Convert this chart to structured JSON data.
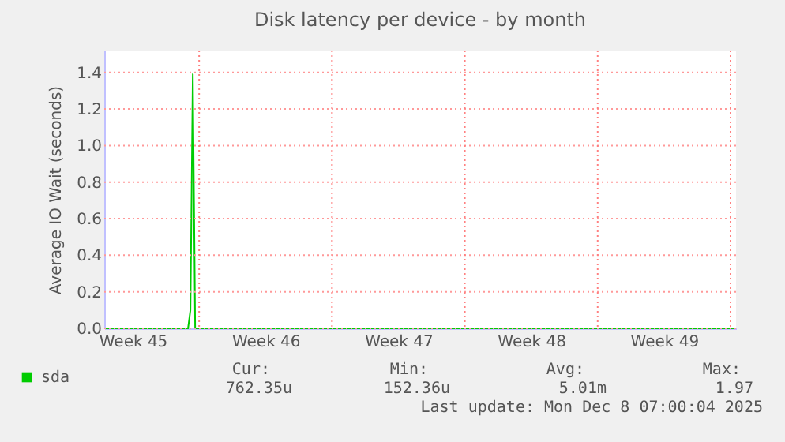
{
  "chart_data": {
    "type": "line",
    "title": "Disk latency per device - by month",
    "ylabel": "Average IO Wait (seconds)",
    "x": [
      "2025-11-05",
      "2025-11-09T10:00",
      "2025-11-09T13:00",
      "2025-11-09T16:00",
      "2025-11-09T19:00",
      "2025-12-08T06:00"
    ],
    "series": [
      {
        "name": "sda",
        "color": "#00cc00",
        "values": [
          0,
          0,
          0.1,
          1.39,
          0,
          0
        ]
      }
    ],
    "xlim": [
      "2025-11-05",
      "2025-12-08T07:00"
    ],
    "xticks": [
      {
        "value": "2025-11-06T12:00",
        "label": "Week 45"
      },
      {
        "value": "2025-11-13T12:00",
        "label": "Week 46"
      },
      {
        "value": "2025-11-20T12:00",
        "label": "Week 47"
      },
      {
        "value": "2025-11-27T12:00",
        "label": "Week 48"
      },
      {
        "value": "2025-12-04T12:00",
        "label": "Week 49"
      }
    ],
    "ylim": [
      0,
      1.52
    ],
    "yticks": [
      {
        "value": 0.0,
        "label": "0.0"
      },
      {
        "value": 0.2,
        "label": "0.2"
      },
      {
        "value": 0.4,
        "label": "0.4"
      },
      {
        "value": 0.6,
        "label": "0.6"
      },
      {
        "value": 0.8,
        "label": "0.8"
      },
      {
        "value": 1.0,
        "label": "1.0"
      },
      {
        "value": 1.2,
        "label": "1.2"
      },
      {
        "value": 1.4,
        "label": "1.4"
      }
    ],
    "ref_lines": [
      {
        "axis": "x",
        "value": "2025-11-10",
        "color": "#ff8080",
        "line_style": "dotted"
      },
      {
        "axis": "x",
        "value": "2025-11-17",
        "color": "#ff8080",
        "line_style": "dotted"
      },
      {
        "axis": "x",
        "value": "2025-11-24",
        "color": "#ff8080",
        "line_style": "dotted"
      },
      {
        "axis": "x",
        "value": "2025-12-01",
        "color": "#ff8080",
        "line_style": "dotted"
      },
      {
        "axis": "x",
        "value": "2025-12-08",
        "color": "#ff8080",
        "line_style": "dotted"
      }
    ],
    "grid": "y",
    "legend": "bottom left",
    "marker": "none",
    "line_style": "solid",
    "annotations": [
      "Cur:",
      "Min:",
      "Avg:",
      "Max:",
      "762.35u",
      "152.36u",
      "5.01m",
      "1.97",
      "Last update:  Mon Dec  8 07:00:04 2025"
    ]
  }
}
